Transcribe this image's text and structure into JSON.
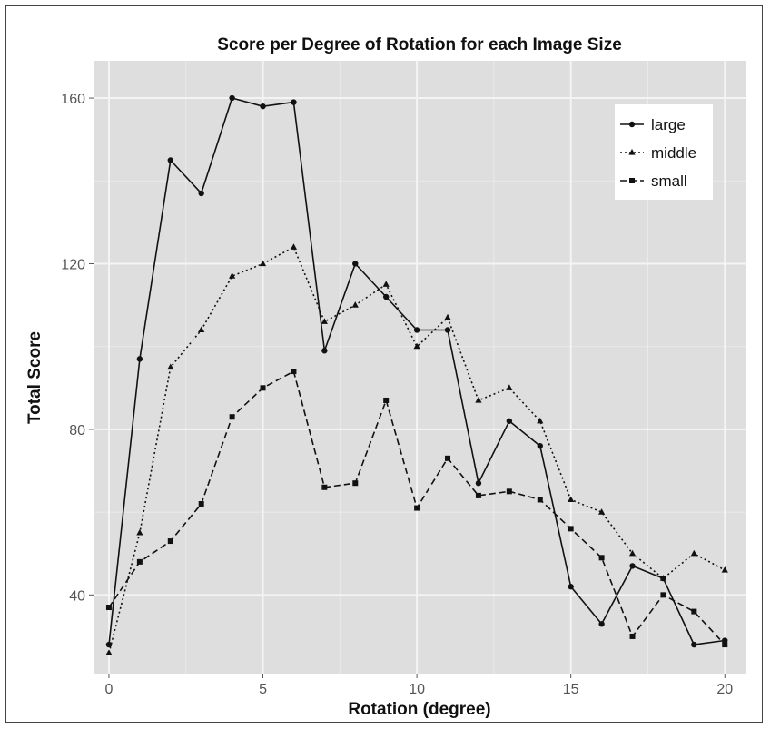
{
  "chart_data": {
    "type": "line",
    "title": "Score per Degree of Rotation for each Image Size",
    "xlabel": "Rotation (degree)",
    "ylabel": "Total Score",
    "xlim": [
      -0.5,
      20.7
    ],
    "ylim": [
      21,
      169
    ],
    "xticks": [
      0,
      5,
      10,
      15,
      20
    ],
    "yticks": [
      40,
      80,
      120,
      160
    ],
    "grid": true,
    "legend_position": "top-right",
    "colors": {
      "panel": "#dedede",
      "grid": "#f4f4f4",
      "series": "#111111"
    },
    "x": [
      0,
      1,
      2,
      3,
      4,
      5,
      6,
      7,
      8,
      9,
      10,
      11,
      12,
      13,
      14,
      15,
      16,
      17,
      18,
      19,
      20
    ],
    "series": [
      {
        "name": "large",
        "marker": "circle",
        "dash": "solid",
        "values": [
          28,
          97,
          145,
          137,
          160,
          158,
          159,
          99,
          120,
          112,
          104,
          104,
          67,
          82,
          76,
          42,
          33,
          47,
          44,
          28,
          29
        ]
      },
      {
        "name": "middle",
        "marker": "triangle",
        "dash": "dotted",
        "values": [
          26,
          55,
          95,
          104,
          117,
          120,
          124,
          106,
          110,
          115,
          100,
          107,
          87,
          90,
          82,
          63,
          60,
          50,
          44,
          50,
          46
        ]
      },
      {
        "name": "small",
        "marker": "square",
        "dash": "dashed",
        "values": [
          37,
          48,
          53,
          62,
          83,
          90,
          94,
          66,
          67,
          87,
          61,
          73,
          64,
          65,
          63,
          56,
          49,
          30,
          40,
          36,
          28
        ]
      }
    ]
  }
}
